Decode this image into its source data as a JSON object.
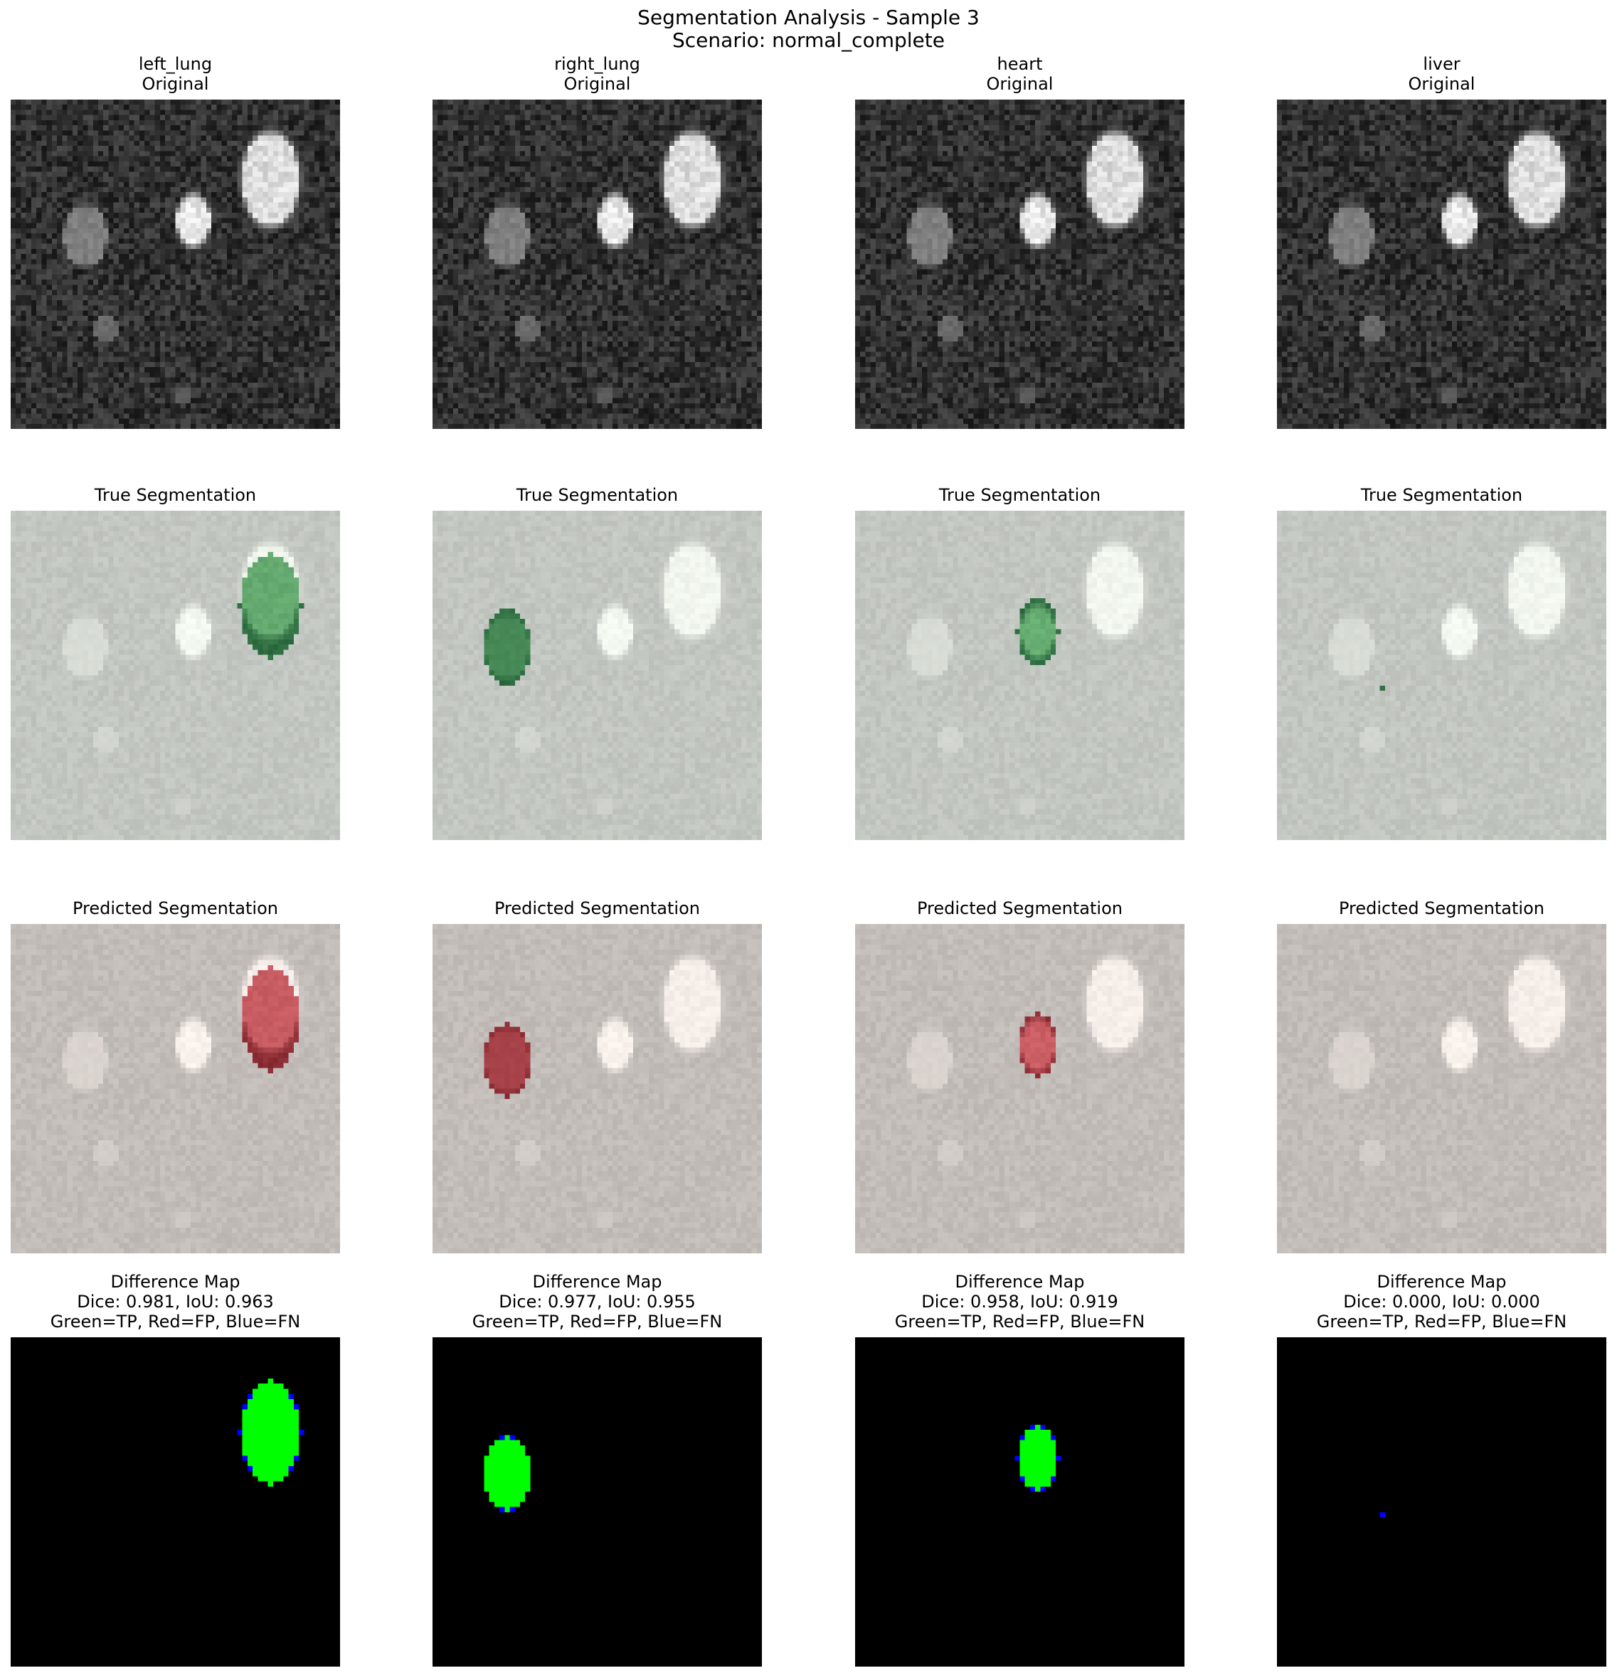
{
  "figure": {
    "title": "Segmentation Analysis - Sample 3",
    "subtitle": "Scenario: normal_complete"
  },
  "chart_data": {
    "type": "image-grid",
    "title": "Segmentation Analysis - Sample 3",
    "subtitle": "Scenario: normal_complete",
    "structures": [
      "left_lung",
      "right_lung",
      "heart",
      "liver"
    ],
    "row_titles": {
      "original": "Original",
      "true": "True Segmentation",
      "pred": "Predicted Segmentation",
      "diff": "Difference Map",
      "legend": "Green=TP, Red=FP, Blue=FN"
    },
    "metrics": [
      {
        "structure": "left_lung",
        "dice": "0.981",
        "iou": "0.963",
        "label": "Dice: 0.981, IoU: 0.963"
      },
      {
        "structure": "right_lung",
        "dice": "0.977",
        "iou": "0.955",
        "label": "Dice: 0.977, IoU: 0.955"
      },
      {
        "structure": "heart",
        "dice": "0.958",
        "iou": "0.919",
        "label": "Dice: 0.958, IoU: 0.919"
      },
      {
        "structure": "liver",
        "dice": "0.000",
        "iou": "0.000",
        "label": "Dice: 0.000, IoU: 0.000"
      }
    ],
    "image_grid": 64,
    "phantom_blobs": [
      {
        "cx": 50.5,
        "cy": 15.5,
        "rx": 5.5,
        "ry": 9,
        "intensity": 0.95
      },
      {
        "cx": 35.5,
        "cy": 23.5,
        "rx": 3.2,
        "ry": 5,
        "intensity": 1.0
      },
      {
        "cx": 14.5,
        "cy": 26.5,
        "rx": 4.2,
        "ry": 6,
        "intensity": 0.55
      },
      {
        "cx": 18.5,
        "cy": 44.5,
        "rx": 2.2,
        "ry": 3,
        "intensity": 0.45
      },
      {
        "cx": 33.5,
        "cy": 57.5,
        "rx": 2,
        "ry": 1.6,
        "intensity": 0.38
      }
    ],
    "true_masks": [
      {
        "cx": 50.5,
        "cy": 18.5,
        "rx": 6,
        "ry": 10
      },
      {
        "cx": 14.5,
        "cy": 26.5,
        "rx": 4.5,
        "ry": 7.5
      },
      {
        "cx": 35.5,
        "cy": 23.5,
        "rx": 4,
        "ry": 6.5
      },
      {
        "cx": 20.5,
        "cy": 34.5,
        "rx": 0.5,
        "ry": 0.5
      }
    ],
    "pred_masks": [
      {
        "cx": 50.5,
        "cy": 18.5,
        "rx": 5.5,
        "ry": 10
      },
      {
        "cx": 14.5,
        "cy": 26.5,
        "rx": 4.5,
        "ry": 7
      },
      {
        "cx": 35.5,
        "cy": 23.5,
        "rx": 3.8,
        "ry": 6
      },
      null
    ],
    "colors": {
      "true_overlay": "#1f5c33",
      "pred_overlay": "#7a1f26",
      "tp": "#00ff00",
      "fp": "#ff0000",
      "fn": "#0000ff",
      "background": "#000000"
    }
  }
}
